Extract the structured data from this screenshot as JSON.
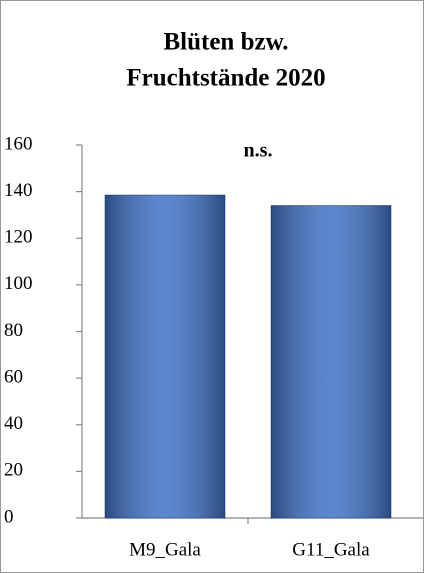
{
  "chart_data": {
    "type": "bar",
    "title": [
      "Blüten bzw.",
      "Fruchtstände 2020"
    ],
    "annotation": "n.s.",
    "categories": [
      "M9_Gala",
      "G11_Gala"
    ],
    "values": [
      138.5,
      134
    ],
    "color": "#3f73c6",
    "ylim": [
      0,
      160
    ],
    "yticks": [
      0,
      20,
      40,
      60,
      80,
      100,
      120,
      140,
      160
    ],
    "grid": false
  }
}
